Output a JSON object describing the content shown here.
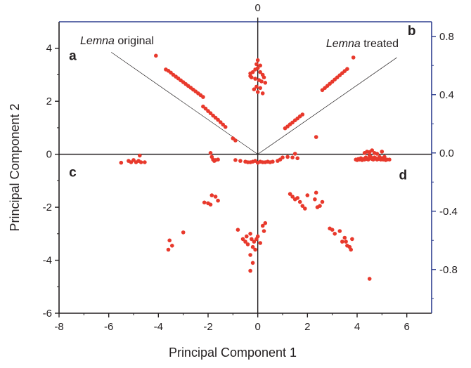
{
  "chart_data": {
    "type": "scatter",
    "title": "",
    "xlabel": "Principal Component 1",
    "ylabel": "Principal Component 2",
    "xlim": [
      -8,
      7
    ],
    "ylim": [
      -6,
      5
    ],
    "y2lim": [
      -1.1,
      0.9
    ],
    "x_ticks": [
      -8,
      -6,
      -4,
      -2,
      0,
      2,
      4,
      6
    ],
    "x_tick_labels": [
      "-8",
      "-6",
      "-4",
      "-2",
      "0",
      "2",
      "4",
      "6"
    ],
    "y_ticks": [
      -6,
      -4,
      -2,
      0,
      2,
      4
    ],
    "y_tick_labels": [
      "-6",
      "-4",
      "-2",
      "0",
      "2",
      "4"
    ],
    "y2_ticks": [
      -0.8,
      -0.4,
      0.0,
      0.4,
      0.8
    ],
    "y2_tick_labels": [
      "-0.8",
      "-0.4",
      "0.0",
      "0.4",
      "0.8"
    ],
    "top_zero_label": "0",
    "colors": {
      "points": "#e8392c",
      "right_axis": "#2e3f8f",
      "axis": "#231f20",
      "loading_line": "#231f20"
    },
    "quadrant_labels": [
      {
        "id": "a",
        "text": "a",
        "x": -7.45,
        "y": 3.55
      },
      {
        "id": "b",
        "text": "b",
        "x": 6.2,
        "y": 4.5
      },
      {
        "id": "c",
        "text": "c",
        "x": -7.45,
        "y": -0.85
      },
      {
        "id": "d",
        "text": "d",
        "x": 5.85,
        "y": -0.95
      }
    ],
    "annotations": [
      {
        "id": "lemna-original",
        "italic": "Lemna",
        "rest": " original",
        "x": -7.15,
        "y": 4.15
      },
      {
        "id": "lemna-treated",
        "italic": "Lemna",
        "rest": " treated",
        "x": 2.75,
        "y": 4.05
      }
    ],
    "loading_vectors": [
      {
        "name": "Lemna original",
        "x0": 0,
        "y0": 0,
        "x1": -5.9,
        "y1": 3.85
      },
      {
        "name": "Lemna treated",
        "x0": 0,
        "y0": 0,
        "x1": 5.6,
        "y1": 3.65
      }
    ],
    "series": [
      {
        "name": "upper-left band",
        "x": [
          -4.1,
          -3.7,
          -3.6,
          -3.5,
          -3.4,
          -3.3,
          -3.2,
          -3.1,
          -3.0,
          -2.9,
          -2.8,
          -2.7,
          -2.6,
          -2.5,
          -2.4,
          -2.3,
          -2.2
        ],
        "y": [
          3.72,
          3.2,
          3.15,
          3.08,
          3.0,
          2.93,
          2.86,
          2.79,
          2.72,
          2.65,
          2.58,
          2.51,
          2.44,
          2.37,
          2.3,
          2.23,
          2.16
        ]
      },
      {
        "name": "upper-left lower band",
        "x": [
          -2.2,
          -2.1,
          -2.0,
          -1.9,
          -1.8,
          -1.7,
          -1.6,
          -1.5,
          -1.4,
          -1.3
        ],
        "y": [
          1.8,
          1.72,
          1.63,
          1.55,
          1.46,
          1.38,
          1.3,
          1.21,
          1.12,
          1.03
        ],
        "_note": ""
      },
      {
        "name": "upper-left tail",
        "x": [
          -1.0,
          -0.9
        ],
        "y": [
          0.6,
          0.52
        ]
      },
      {
        "name": "center top cluster",
        "x": [
          -0.3,
          -0.2,
          -0.1,
          0.0,
          0.1,
          0.2,
          -0.25,
          -0.1,
          0.05,
          0.15,
          0.3,
          -0.05,
          0.1,
          -0.15,
          0.0,
          0.2,
          -0.3,
          0.25,
          0.0,
          -0.05,
          0.1
        ],
        "y": [
          3.05,
          3.1,
          3.2,
          3.25,
          3.1,
          3.0,
          2.9,
          2.85,
          2.8,
          2.75,
          2.7,
          2.55,
          2.5,
          2.45,
          2.35,
          2.3,
          2.95,
          2.9,
          3.55,
          3.4,
          3.35
        ]
      },
      {
        "name": "upper-right lower band",
        "x": [
          1.1,
          1.2,
          1.3,
          1.4,
          1.5,
          1.6,
          1.7,
          1.8
        ],
        "y": [
          0.98,
          1.05,
          1.13,
          1.2,
          1.28,
          1.35,
          1.43,
          1.5
        ]
      },
      {
        "name": "upper-right band",
        "x": [
          2.6,
          2.7,
          2.8,
          2.9,
          3.0,
          3.1,
          3.2,
          3.3,
          3.4,
          3.5,
          3.6,
          3.85
        ],
        "y": [
          2.42,
          2.5,
          2.58,
          2.66,
          2.74,
          2.82,
          2.9,
          2.98,
          3.06,
          3.14,
          3.22,
          3.65
        ]
      },
      {
        "name": "upper-right isolated",
        "x": [
          2.35
        ],
        "y": [
          0.65
        ]
      },
      {
        "name": "left far cluster",
        "x": [
          -5.5,
          -5.2,
          -5.1,
          -5.0,
          -4.9,
          -4.8,
          -4.75,
          -4.7,
          -4.55
        ],
        "y": [
          -0.32,
          -0.25,
          -0.3,
          -0.22,
          -0.3,
          -0.25,
          -0.05,
          -0.3,
          -0.3
        ]
      },
      {
        "name": "left mid cluster",
        "x": [
          -1.9,
          -1.85,
          -1.8,
          -1.75,
          -1.7,
          -1.6
        ],
        "y": [
          0.05,
          -0.1,
          -0.2,
          -0.25,
          -0.22,
          -0.2
        ]
      },
      {
        "name": "center axis cluster",
        "x": [
          -0.9,
          -0.7,
          -0.5,
          -0.4,
          -0.3,
          -0.2,
          -0.1,
          0.0,
          0.1,
          0.2,
          0.3,
          0.4,
          0.5,
          0.6,
          0.8,
          0.9,
          1.0,
          1.2,
          1.4,
          1.5,
          1.6
        ],
        "y": [
          -0.22,
          -0.25,
          -0.28,
          -0.3,
          -0.3,
          -0.28,
          -0.25,
          -0.32,
          -0.28,
          -0.3,
          -0.3,
          -0.28,
          -0.3,
          -0.28,
          -0.25,
          -0.2,
          -0.12,
          -0.1,
          -0.12,
          0.02,
          -0.15
        ]
      },
      {
        "name": "right far cluster",
        "x": [
          3.95,
          4.0,
          4.05,
          4.1,
          4.15,
          4.2,
          4.25,
          4.3,
          4.35,
          4.4,
          4.45,
          4.5,
          4.55,
          4.6,
          4.65,
          4.7,
          4.75,
          4.8,
          4.85,
          4.9,
          4.95,
          5.0,
          5.05,
          5.1,
          5.15,
          5.2,
          5.3,
          4.3,
          4.4,
          4.5,
          4.6,
          4.7,
          4.5,
          4.8,
          5.0
        ],
        "y": [
          -0.2,
          -0.22,
          -0.18,
          -0.2,
          -0.15,
          -0.22,
          -0.18,
          -0.2,
          -0.12,
          -0.18,
          -0.2,
          -0.15,
          -0.1,
          -0.18,
          -0.2,
          -0.12,
          -0.15,
          -0.2,
          -0.18,
          -0.1,
          -0.2,
          -0.15,
          -0.2,
          -0.1,
          -0.22,
          -0.2,
          -0.2,
          0.05,
          0.1,
          0.08,
          0.15,
          0.05,
          -0.05,
          0.02,
          0.1
        ]
      },
      {
        "name": "lower-left cluster",
        "x": [
          -2.15,
          -2.0,
          -1.9,
          -1.85,
          -1.7,
          -1.6
        ],
        "y": [
          -1.82,
          -1.85,
          -1.9,
          -1.55,
          -1.6,
          -1.75
        ]
      },
      {
        "name": "lower-left far",
        "x": [
          -3.55,
          -3.45,
          -3.0,
          -3.6
        ],
        "y": [
          -3.25,
          -3.45,
          -2.95,
          -3.6
        ]
      },
      {
        "name": "lower center cluster",
        "x": [
          -0.6,
          -0.5,
          -0.45,
          -0.4,
          -0.3,
          -0.25,
          -0.2,
          -0.15,
          -0.1,
          -0.05,
          0.0,
          0.1,
          0.2,
          0.3,
          0.25,
          -0.3,
          -0.2,
          -0.3,
          -0.8
        ],
        "y": [
          -3.2,
          -3.3,
          -3.1,
          -3.4,
          -3.0,
          -3.2,
          -3.5,
          -3.3,
          -3.6,
          -3.2,
          -3.1,
          -3.35,
          -2.7,
          -2.6,
          -2.9,
          -3.8,
          -4.1,
          -4.4,
          -2.85
        ]
      },
      {
        "name": "lower-right cluster",
        "x": [
          1.3,
          1.4,
          1.5,
          1.6,
          1.7,
          1.8,
          1.9,
          2.0,
          2.3,
          2.35,
          2.4,
          2.5,
          2.6
        ],
        "y": [
          -1.5,
          -1.6,
          -1.7,
          -1.65,
          -1.8,
          -1.95,
          -2.05,
          -1.55,
          -1.7,
          -1.45,
          -2.0,
          -1.95,
          -1.8
        ]
      },
      {
        "name": "lower-right far",
        "x": [
          2.9,
          3.0,
          3.1,
          3.3,
          3.5,
          3.55,
          3.6,
          3.7,
          3.75,
          3.8,
          3.4,
          4.5
        ],
        "y": [
          -2.8,
          -2.85,
          -3.0,
          -2.9,
          -3.15,
          -3.3,
          -3.45,
          -3.5,
          -3.6,
          -3.2,
          -3.3,
          -4.7
        ]
      }
    ]
  }
}
